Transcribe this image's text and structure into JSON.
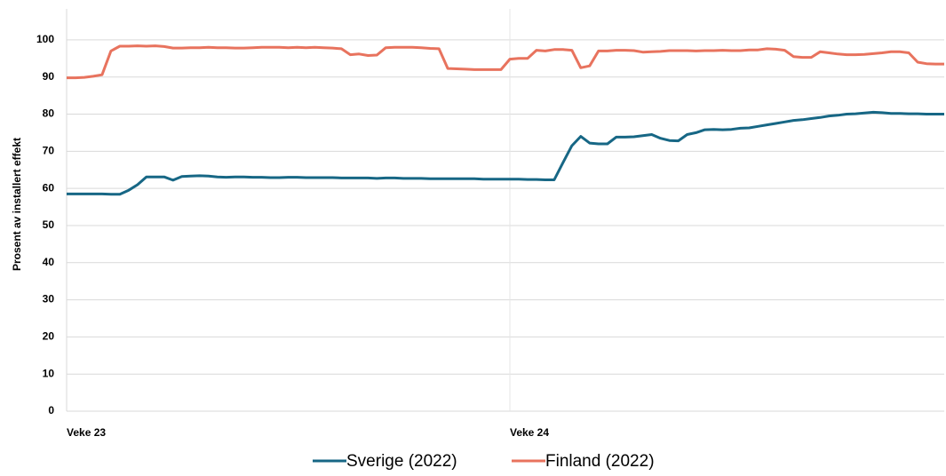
{
  "chart_data": {
    "type": "line",
    "y_label": "Prosent av installert effekt",
    "categories": [
      "Veke 23",
      null,
      null,
      null,
      null,
      null,
      null,
      null,
      null,
      null,
      null,
      null,
      null,
      null,
      null,
      null,
      null,
      null,
      null,
      null,
      null,
      null,
      null,
      null,
      null,
      null,
      null,
      null,
      null,
      null,
      null,
      null,
      null,
      null,
      null,
      null,
      null,
      null,
      null,
      null,
      null,
      null,
      null,
      null,
      null,
      null,
      null,
      null,
      null,
      null,
      "Veke 24",
      null,
      null,
      null,
      null,
      null,
      null,
      null,
      null,
      null,
      null,
      null,
      null,
      null,
      null,
      null,
      null,
      null,
      null,
      null,
      null,
      null,
      null,
      null,
      null,
      null,
      null,
      null,
      null,
      null,
      null,
      null,
      null,
      null,
      null,
      null,
      null,
      null,
      null,
      null,
      null,
      null,
      null,
      null,
      null,
      null,
      null,
      null,
      null,
      null
    ],
    "series": [
      {
        "name": "Sverige (2022)",
        "color": "#176785",
        "values": [
          58.5,
          58.5,
          58.5,
          58.5,
          58.5,
          58.4,
          58.4,
          59.5,
          61,
          63.1,
          63.1,
          63.1,
          62.2,
          63.2,
          63.3,
          63.4,
          63.3,
          63.1,
          63.0,
          63.1,
          63.1,
          63.0,
          63.0,
          62.9,
          62.9,
          63.0,
          63.0,
          62.9,
          62.9,
          62.9,
          62.9,
          62.8,
          62.8,
          62.8,
          62.8,
          62.7,
          62.8,
          62.8,
          62.7,
          62.7,
          62.7,
          62.6,
          62.6,
          62.6,
          62.6,
          62.6,
          62.6,
          62.5,
          62.5,
          62.5,
          62.5,
          62.5,
          62.4,
          62.4,
          62.3,
          62.3,
          67,
          71.5,
          74,
          72.2,
          72,
          72,
          73.8,
          73.8,
          73.9,
          74.2,
          74.5,
          73.5,
          72.9,
          72.8,
          74.5,
          75,
          75.8,
          75.9,
          75.8,
          75.9,
          76.2,
          76.3,
          76.7,
          77.1,
          77.5,
          77.9,
          78.3,
          78.5,
          78.8,
          79.1,
          79.5,
          79.7,
          80,
          80.1,
          80.3,
          80.5,
          80.4,
          80.2,
          80.2,
          80.1,
          80.1,
          80,
          80,
          80
        ]
      },
      {
        "name": "Finland (2022)",
        "color": "#e8735e",
        "values": [
          89.8,
          89.8,
          89.9,
          90.2,
          90.6,
          97,
          98.3,
          98.3,
          98.4,
          98.3,
          98.4,
          98.2,
          97.8,
          97.8,
          97.9,
          97.9,
          98,
          97.9,
          97.9,
          97.8,
          97.8,
          97.9,
          98,
          98,
          98,
          97.9,
          98,
          97.9,
          98,
          97.9,
          97.8,
          97.6,
          96,
          96.2,
          95.8,
          95.9,
          97.9,
          98,
          98,
          98,
          97.9,
          97.7,
          97.6,
          92.3,
          92.2,
          92.1,
          92,
          92,
          92,
          92,
          94.8,
          95,
          95,
          97.2,
          97,
          97.4,
          97.4,
          97.2,
          92.5,
          93,
          97,
          97,
          97.2,
          97.2,
          97.1,
          96.7,
          96.8,
          96.9,
          97.1,
          97.1,
          97.1,
          97,
          97.1,
          97.1,
          97.2,
          97.1,
          97.1,
          97.3,
          97.3,
          97.6,
          97.5,
          97.2,
          95.5,
          95.3,
          95.3,
          96.8,
          96.5,
          96.2,
          96,
          96,
          96.1,
          96.3,
          96.5,
          96.8,
          96.8,
          96.5,
          94,
          93.6,
          93.5,
          93.5
        ]
      }
    ],
    "ylim": [
      0,
      105
    ],
    "yticks": [
      0,
      10,
      20,
      30,
      40,
      50,
      60,
      70,
      80,
      90,
      100
    ],
    "grid": true
  }
}
